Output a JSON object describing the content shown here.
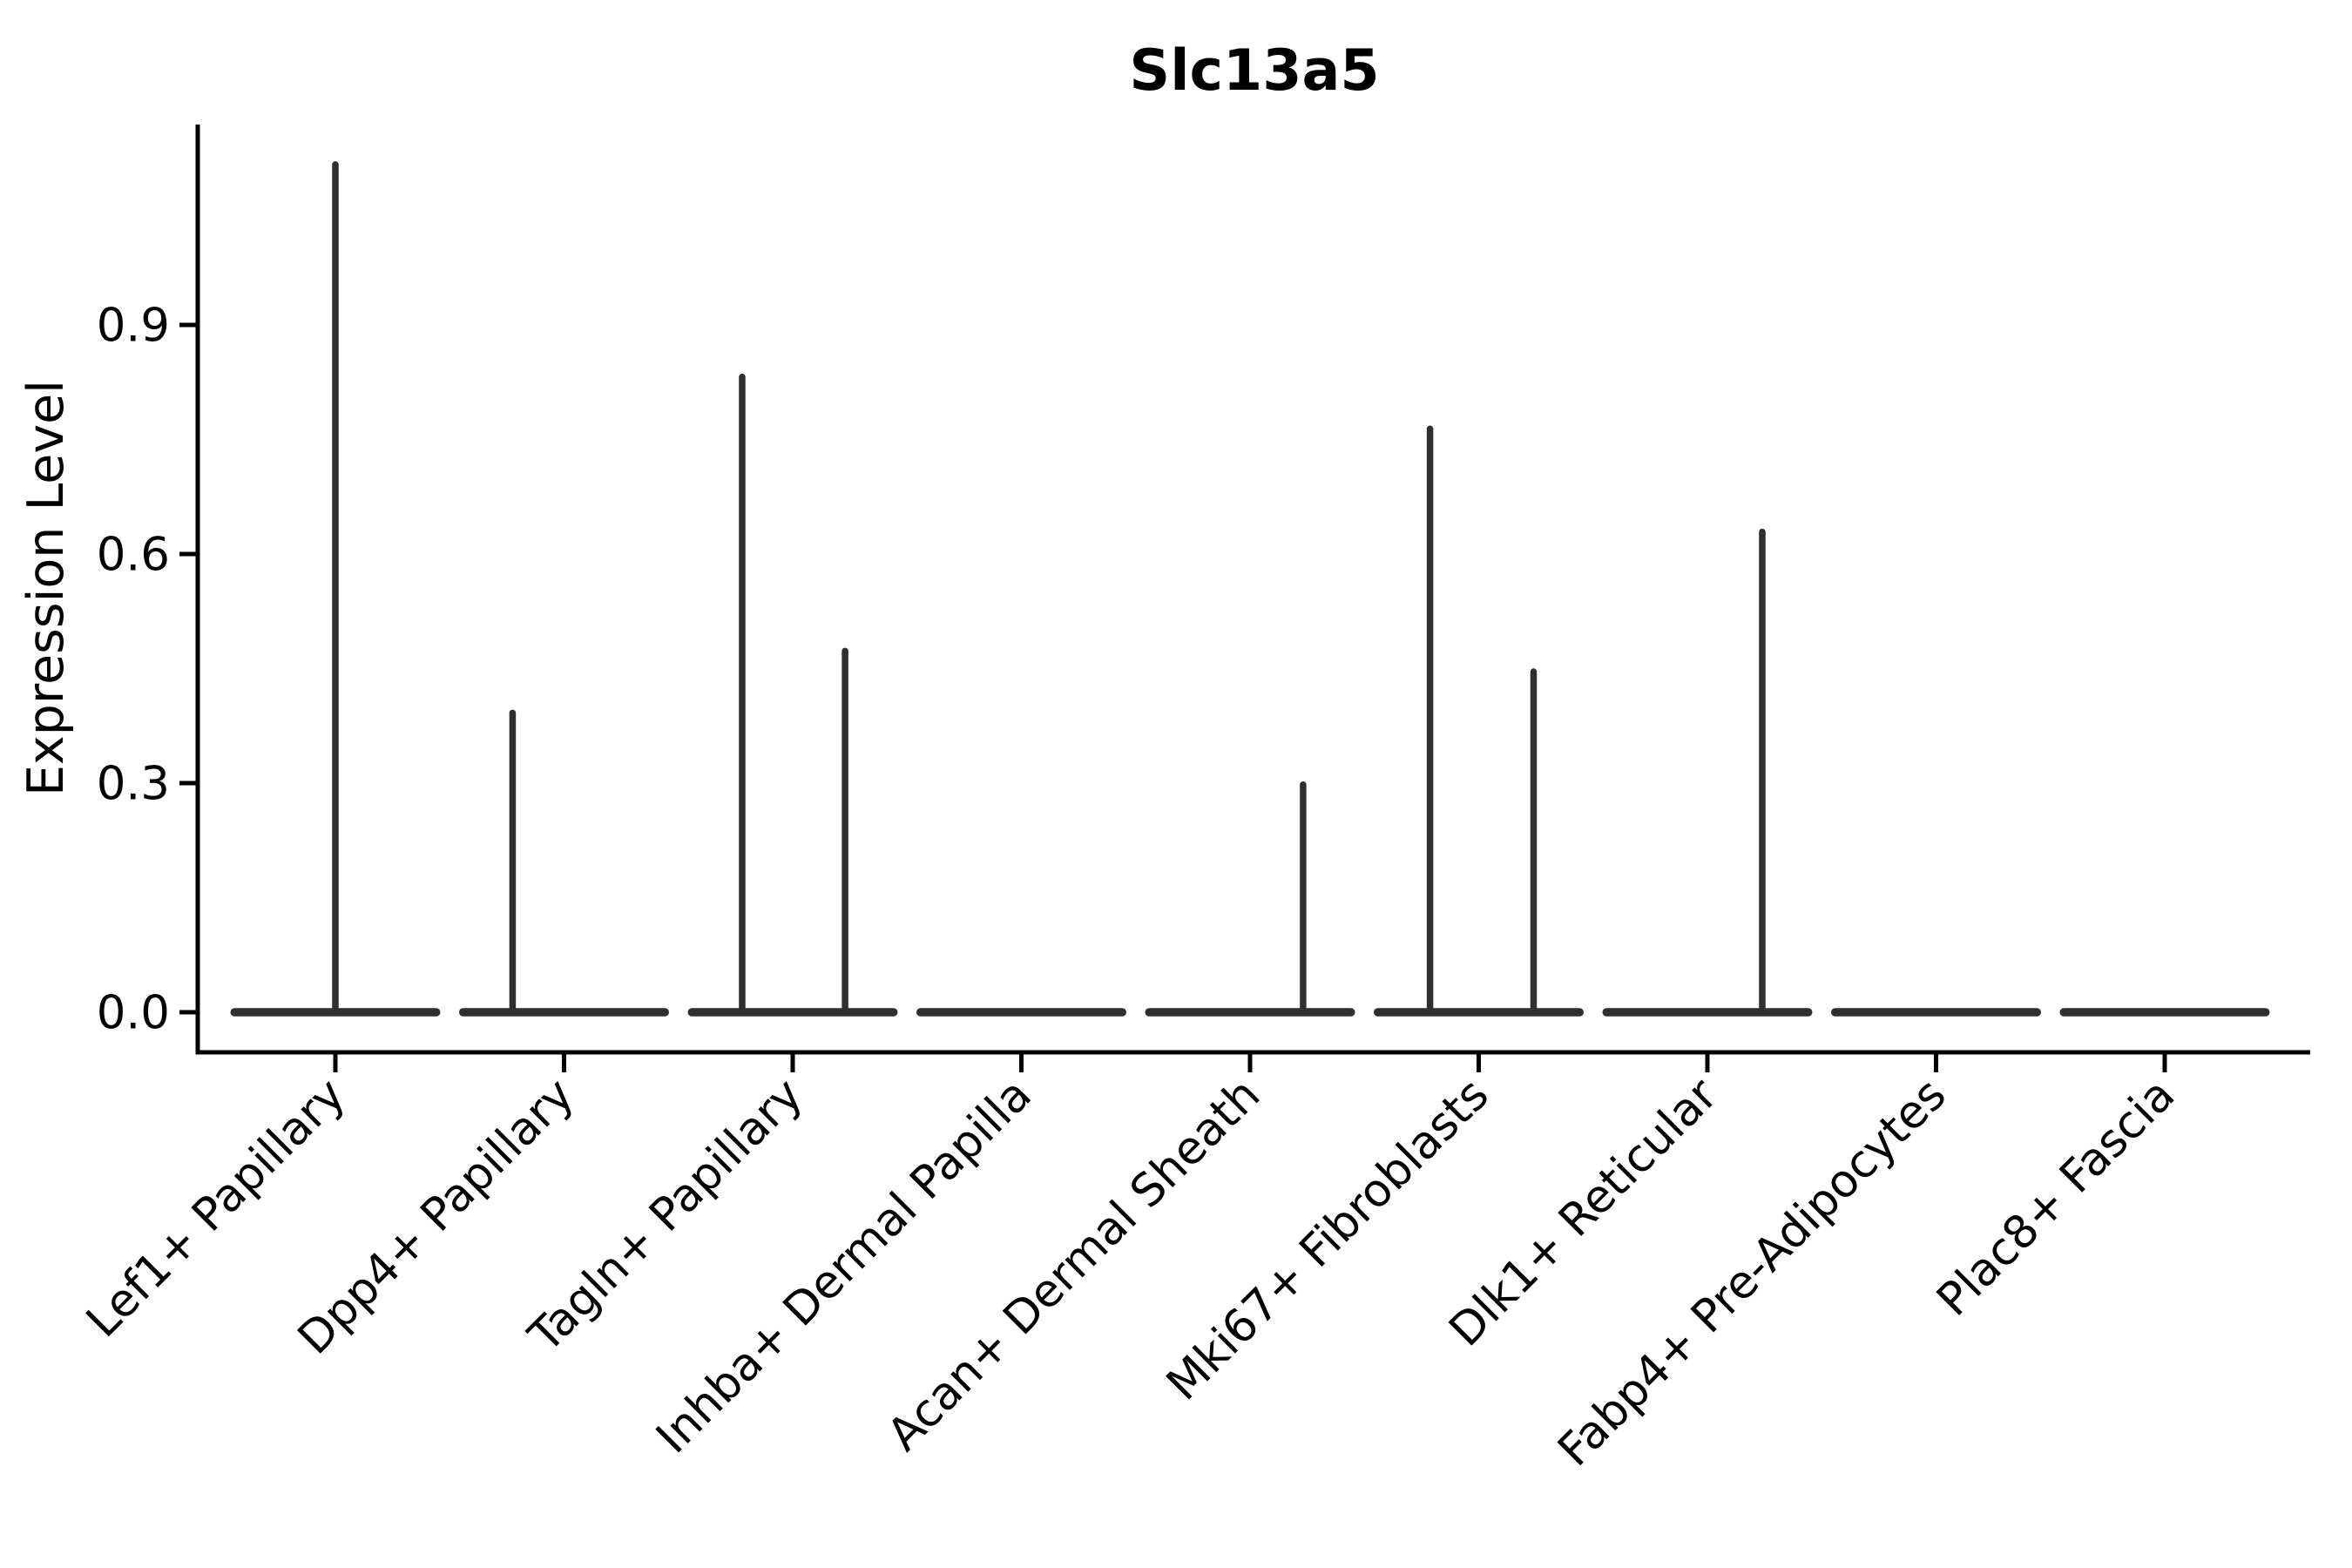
{
  "title": "Slc13a5",
  "axes": {
    "y_label": "Expression Level",
    "y_tick_labels": [
      "0.0",
      "0.3",
      "0.6",
      "0.9"
    ]
  },
  "chart_data": {
    "type": "violin",
    "title": "Slc13a5",
    "xlabel": "",
    "ylabel": "Expression Level",
    "ylim": [
      0,
      1.16
    ],
    "yticks": [
      0.0,
      0.3,
      0.6,
      0.9
    ],
    "ytick_labels": [
      "0.0",
      "0.3",
      "0.6",
      "0.9"
    ],
    "grid": false,
    "legend": "none",
    "x_tick_rotation_deg": 45,
    "categories": [
      "Lef1+ Papillary",
      "Dpp4+ Papillary",
      "Tagln+ Papillary",
      "Inhba+ Dermal Papilla",
      "Acan+ Dermal Sheath",
      "Mki67+ Fibroblasts",
      "Dlk1+ Reticular",
      "Fabp4+ Pre-Adipocytes",
      "Plac8+ Fascia"
    ],
    "violins": [
      {
        "category": "Lef1+ Papillary",
        "zero_body": true,
        "max_value": 1.11,
        "spikes": [
          {
            "value": 1.11,
            "offset": 0.0
          }
        ]
      },
      {
        "category": "Dpp4+ Papillary",
        "zero_body": true,
        "max_value": 0.39,
        "spikes": [
          {
            "value": 0.392,
            "offset": -0.225
          }
        ]
      },
      {
        "category": "Tagln+ Papillary",
        "zero_body": true,
        "max_value": 0.83,
        "spikes": [
          {
            "value": 0.832,
            "offset": -0.221
          },
          {
            "value": 0.473,
            "offset": 0.229
          }
        ]
      },
      {
        "category": "Inhba+ Dermal Papilla",
        "zero_body": true,
        "max_value": 0.0,
        "spikes": []
      },
      {
        "category": "Acan+ Dermal Sheath",
        "zero_body": true,
        "max_value": 0.3,
        "spikes": [
          {
            "value": 0.298,
            "offset": 0.232
          }
        ]
      },
      {
        "category": "Mki67+ Fibroblasts",
        "zero_body": true,
        "max_value": 0.76,
        "spikes": [
          {
            "value": 0.764,
            "offset": -0.213
          },
          {
            "value": 0.446,
            "offset": 0.24
          }
        ]
      },
      {
        "category": "Dlk1+ Reticular",
        "zero_body": true,
        "max_value": 0.63,
        "spikes": [
          {
            "value": 0.629,
            "offset": 0.24
          }
        ]
      },
      {
        "category": "Fabp4+ Pre-Adipocytes",
        "zero_body": true,
        "max_value": 0.0,
        "spikes": []
      },
      {
        "category": "Plac8+ Fascia",
        "zero_body": true,
        "max_value": 0.0,
        "spikes": []
      }
    ],
    "colors": {
      "violin": "#2f2f2f",
      "axis": "#000000",
      "text": "#000000",
      "background": "#ffffff"
    }
  }
}
